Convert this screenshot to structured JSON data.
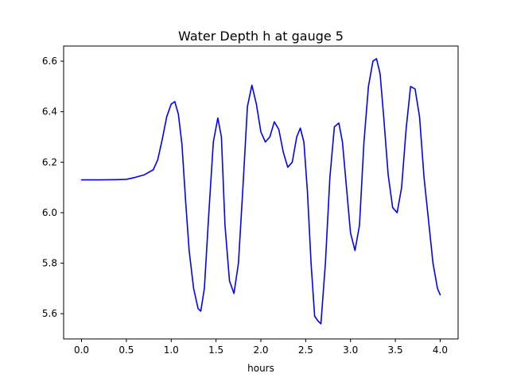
{
  "chart_data": {
    "type": "line",
    "title": "Water Depth h at gauge 5",
    "xlabel": "hours",
    "ylabel": "",
    "xlim": [
      -0.2,
      4.2
    ],
    "ylim": [
      5.5,
      6.66
    ],
    "xticks": [
      0.0,
      0.5,
      1.0,
      1.5,
      2.0,
      2.5,
      3.0,
      3.5,
      4.0
    ],
    "xtick_labels": [
      "0.0",
      "0.5",
      "1.0",
      "1.5",
      "2.0",
      "2.5",
      "3.0",
      "3.5",
      "4.0"
    ],
    "yticks": [
      5.6,
      5.8,
      6.0,
      6.2,
      6.4,
      6.6
    ],
    "ytick_labels": [
      "5.6",
      "5.8",
      "6.0",
      "6.2",
      "6.4",
      "6.6"
    ],
    "grid": false,
    "series": [
      {
        "name": "",
        "color": "#0000ff",
        "x": [
          0.0,
          0.2,
          0.4,
          0.5,
          0.6,
          0.7,
          0.8,
          0.85,
          0.9,
          0.95,
          1.0,
          1.04,
          1.08,
          1.12,
          1.16,
          1.2,
          1.25,
          1.3,
          1.33,
          1.37,
          1.42,
          1.47,
          1.52,
          1.56,
          1.6,
          1.65,
          1.7,
          1.75,
          1.8,
          1.85,
          1.9,
          1.95,
          2.0,
          2.05,
          2.1,
          2.15,
          2.2,
          2.25,
          2.3,
          2.35,
          2.4,
          2.44,
          2.48,
          2.52,
          2.56,
          2.6,
          2.64,
          2.67,
          2.72,
          2.77,
          2.82,
          2.87,
          2.91,
          2.95,
          3.0,
          3.05,
          3.1,
          3.15,
          3.2,
          3.25,
          3.29,
          3.33,
          3.37,
          3.42,
          3.47,
          3.52,
          3.57,
          3.62,
          3.67,
          3.72,
          3.77,
          3.82,
          3.87,
          3.92,
          3.97,
          4.0
        ],
        "y": [
          6.13,
          6.13,
          6.131,
          6.132,
          6.14,
          6.15,
          6.17,
          6.21,
          6.29,
          6.38,
          6.43,
          6.44,
          6.39,
          6.27,
          6.05,
          5.85,
          5.7,
          5.62,
          5.61,
          5.7,
          6.0,
          6.28,
          6.375,
          6.3,
          5.95,
          5.73,
          5.68,
          5.8,
          6.1,
          6.42,
          6.505,
          6.43,
          6.32,
          6.28,
          6.3,
          6.36,
          6.33,
          6.24,
          6.18,
          6.2,
          6.3,
          6.335,
          6.28,
          6.08,
          5.8,
          5.59,
          5.57,
          5.56,
          5.8,
          6.14,
          6.34,
          6.355,
          6.28,
          6.12,
          5.92,
          5.85,
          5.95,
          6.28,
          6.5,
          6.6,
          6.61,
          6.55,
          6.38,
          6.15,
          6.02,
          6.0,
          6.1,
          6.33,
          6.5,
          6.49,
          6.38,
          6.14,
          5.97,
          5.8,
          5.7,
          5.675
        ]
      }
    ]
  }
}
